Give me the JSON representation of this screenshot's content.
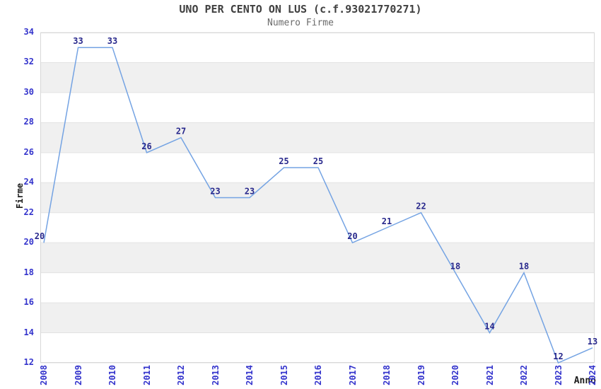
{
  "title": "UNO PER CENTO ON LUS (c.f.93021770271)",
  "subtitle": "Numero Firme",
  "chart_data": {
    "type": "line",
    "title": "UNO PER CENTO ON LUS (c.f.93021770271)",
    "subtitle": "Numero Firme",
    "x": [
      "2008",
      "2009",
      "2010",
      "2011",
      "2012",
      "2013",
      "2014",
      "2015",
      "2016",
      "2017",
      "2018",
      "2019",
      "2020",
      "2021",
      "2022",
      "2023",
      "2024"
    ],
    "series": [
      {
        "name": "Numero Firme",
        "values": [
          20,
          33,
          33,
          26,
          27,
          23,
          23,
          25,
          25,
          20,
          21,
          22,
          18,
          14,
          18,
          12,
          13
        ]
      }
    ],
    "xlabel": "Anno",
    "ylabel": "Firme",
    "ylim": [
      12,
      34
    ],
    "yticks": [
      12,
      14,
      16,
      18,
      20,
      22,
      24,
      26,
      28,
      30,
      32,
      34
    ],
    "band_intervals": [
      [
        14,
        16
      ],
      [
        18,
        20
      ],
      [
        22,
        24
      ],
      [
        26,
        28
      ],
      [
        30,
        32
      ]
    ],
    "data_labels": true,
    "legend": "none",
    "grid": "horizontal gridlines every 2 units with alternating gray bands",
    "colors": {
      "line": "#74a3e3",
      "tick_label": "#3333cc",
      "data_label": "#28288c",
      "band": "#f0f0f0",
      "gridline": "#e2e2e2",
      "border": "#d8d8d8",
      "title": "#404040",
      "subtitle": "#6b6b6b",
      "axis_label": "#1a1a1a"
    }
  }
}
